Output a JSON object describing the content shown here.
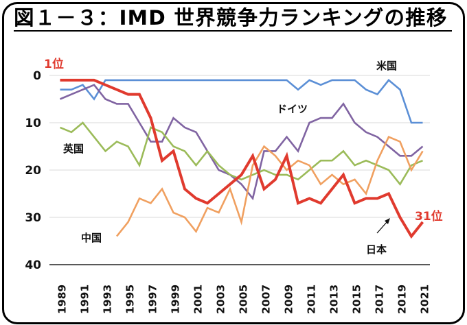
{
  "chart_data": {
    "type": "line",
    "title": "図１－３：IMD 世界競争力ランキングの推移",
    "xlabel": "",
    "ylabel": "",
    "ylim": [
      0,
      40
    ],
    "y_inverted": true,
    "yticks": [
      "0",
      "10",
      "20",
      "30",
      "40"
    ],
    "ytick_values": [
      0,
      10,
      20,
      30,
      40
    ],
    "grid": true,
    "x": [
      1989,
      1990,
      1991,
      1992,
      1993,
      1994,
      1995,
      1996,
      1997,
      1998,
      1999,
      2000,
      2001,
      2002,
      2003,
      2004,
      2005,
      2006,
      2007,
      2008,
      2009,
      2010,
      2011,
      2012,
      2013,
      2014,
      2015,
      2016,
      2017,
      2018,
      2019,
      2020,
      2021
    ],
    "xticks": [
      "1989",
      "1991",
      "1993",
      "1995",
      "1997",
      "1999",
      "2001",
      "2003",
      "2005",
      "2007",
      "2009",
      "2011",
      "2013",
      "2015",
      "2017",
      "2019",
      "2021"
    ],
    "series": [
      {
        "name": "米国",
        "color": "#5b8fd6",
        "values": [
          3,
          3,
          2,
          5,
          1,
          1,
          1,
          1,
          1,
          1,
          1,
          1,
          1,
          1,
          1,
          1,
          1,
          1,
          1,
          1,
          1,
          3,
          1,
          2,
          1,
          1,
          1,
          3,
          4,
          1,
          3,
          10,
          10
        ]
      },
      {
        "name": "ドイツ",
        "color": "#8064a2",
        "values": [
          5,
          4,
          3,
          2,
          5,
          6,
          6,
          10,
          14,
          14,
          9,
          11,
          12,
          16,
          20,
          21,
          23,
          26,
          16,
          16,
          13,
          16,
          10,
          9,
          9,
          6,
          10,
          12,
          13,
          15,
          17,
          17,
          15
        ]
      },
      {
        "name": "英国",
        "color": "#9bbb59",
        "values": [
          11,
          12,
          10,
          13,
          16,
          14,
          15,
          19,
          11,
          12,
          15,
          16,
          19,
          16,
          19,
          21,
          22,
          21,
          20,
          21,
          21,
          22,
          20,
          18,
          18,
          16,
          19,
          18,
          19,
          20,
          23,
          19,
          18
        ]
      },
      {
        "name": "中国",
        "color": "#f0a060",
        "values": [
          null,
          null,
          null,
          null,
          null,
          34,
          31,
          26,
          27,
          24,
          29,
          30,
          33,
          28,
          29,
          24,
          31,
          19,
          15,
          17,
          20,
          18,
          19,
          23,
          21,
          23,
          22,
          25,
          18,
          13,
          14,
          20,
          16
        ]
      },
      {
        "name": "日本",
        "color": "#e03a2e",
        "values": [
          1,
          1,
          1,
          1,
          2,
          3,
          4,
          4,
          9,
          18,
          16,
          24,
          26,
          27,
          25,
          23,
          21,
          17,
          24,
          22,
          17,
          27,
          26,
          27,
          24,
          21,
          27,
          26,
          26,
          25,
          30,
          34,
          31
        ]
      }
    ],
    "annotations": {
      "japan_first": "1位",
      "japan_last": "31位",
      "label_us": "米国",
      "label_germany": "ドイツ",
      "label_uk": "英国",
      "label_china": "中国",
      "label_japan": "日本"
    }
  }
}
